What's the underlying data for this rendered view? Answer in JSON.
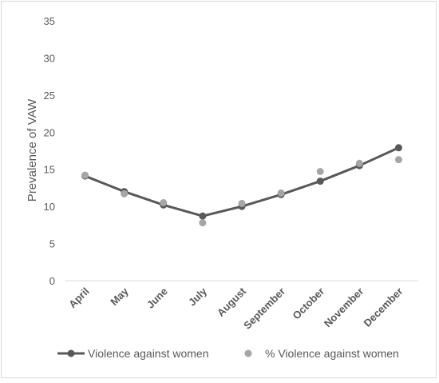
{
  "chart_data": {
    "type": "line",
    "title": "",
    "xlabel": "",
    "ylabel": "Prevalence of VAW",
    "ylim": [
      0,
      35
    ],
    "yticks": [
      0,
      5,
      10,
      15,
      20,
      25,
      30,
      35
    ],
    "grid": false,
    "legend_position": "bottom",
    "categories": [
      "April",
      "May",
      "June",
      "July",
      "August",
      "September",
      "October",
      "November",
      "December"
    ],
    "series": [
      {
        "name": "Violence against women",
        "style": "line-with-markers",
        "color": "#595959",
        "values": [
          14.1,
          12.0,
          10.2,
          8.7,
          10.0,
          11.6,
          13.4,
          15.5,
          17.9
        ]
      },
      {
        "name": "% Violence against women",
        "style": "markers-only",
        "color": "#a6a6a6",
        "values": [
          14.2,
          11.7,
          10.5,
          7.8,
          10.4,
          11.8,
          14.7,
          15.8,
          16.3
        ]
      }
    ]
  }
}
